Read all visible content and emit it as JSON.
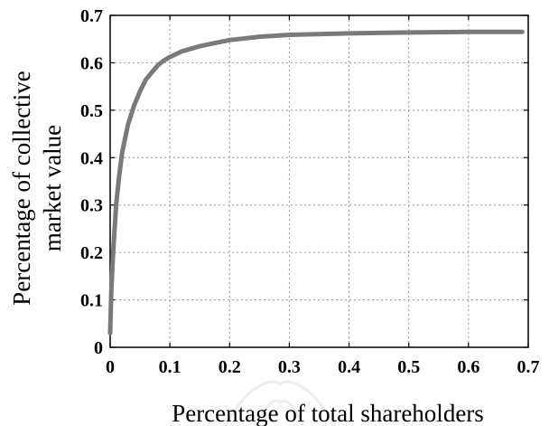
{
  "chart_data": {
    "type": "line",
    "xlabel": "Percentage of total shareholders",
    "ylabel_lines": [
      "Percentage of collective",
      "market value"
    ],
    "xlim": [
      0,
      0.7
    ],
    "ylim": [
      0,
      0.7
    ],
    "x_ticks": [
      "0",
      "0.1",
      "0.2",
      "0.3",
      "0.4",
      "0.5",
      "0.6",
      "0.7"
    ],
    "y_ticks": [
      "0",
      "0.1",
      "0.2",
      "0.3",
      "0.4",
      "0.5",
      "0.6",
      "0.7"
    ],
    "grid": true,
    "line_color": "#7a7a7a",
    "series": [
      {
        "x": [
          0.0,
          0.002,
          0.005,
          0.01,
          0.015,
          0.02,
          0.03,
          0.04,
          0.05,
          0.06,
          0.07,
          0.08,
          0.09,
          0.1,
          0.12,
          0.15,
          0.18,
          0.2,
          0.25,
          0.3,
          0.4,
          0.5,
          0.6,
          0.69
        ],
        "y": [
          0.03,
          0.12,
          0.2,
          0.3,
          0.36,
          0.41,
          0.47,
          0.51,
          0.54,
          0.565,
          0.58,
          0.595,
          0.605,
          0.612,
          0.624,
          0.635,
          0.643,
          0.648,
          0.655,
          0.659,
          0.662,
          0.664,
          0.665,
          0.665
        ]
      }
    ]
  }
}
